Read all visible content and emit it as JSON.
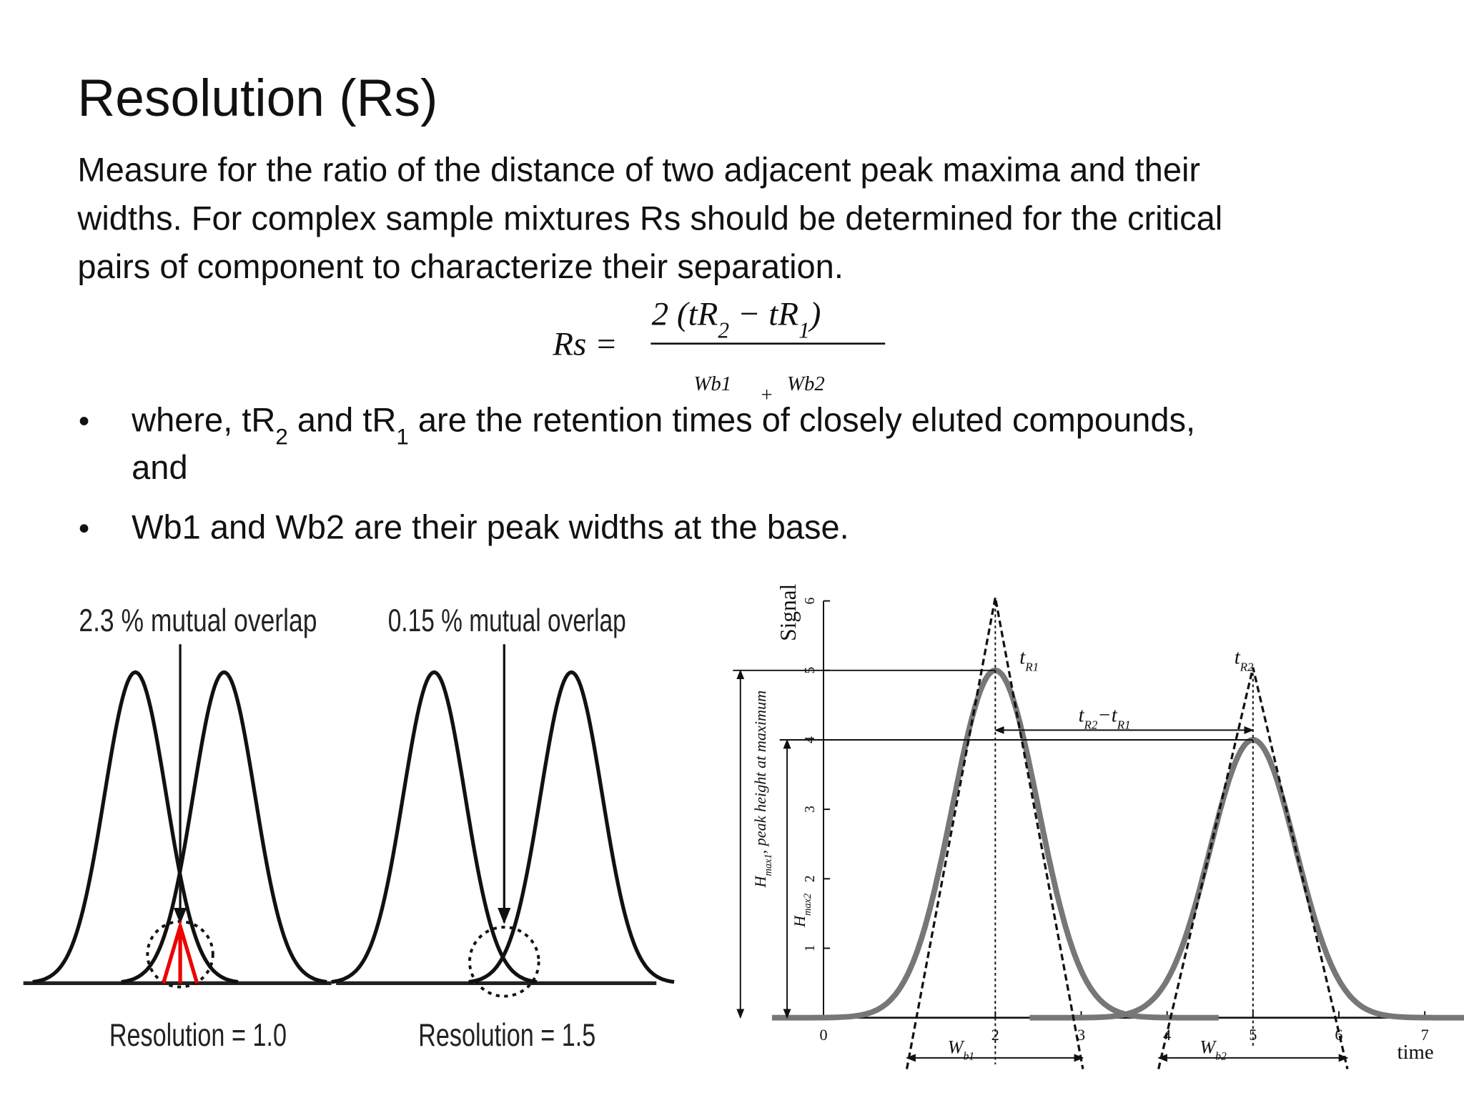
{
  "title": "Resolution (Rs)",
  "paragraph": [
    "Measure for the ratio of the distance of two adjacent peak maxima and their",
    "widths. For complex sample mixtures Rs should be determined for the critical",
    "pairs of component to characterize their separation."
  ],
  "formula": {
    "lhs": "Rs =",
    "numerator": [
      "2 (tR",
      "2",
      " − tR",
      "1",
      ")"
    ],
    "denominator": [
      "Wb1",
      "+",
      "Wb2"
    ]
  },
  "bullets": [
    {
      "parts": [
        "where, tR",
        "2",
        " and tR",
        "1",
        " are the retention times of closely eluted compounds,"
      ],
      "continuation": "and"
    },
    {
      "parts": [
        "Wb1 and Wb2 are their peak widths at the base."
      ]
    }
  ],
  "figure_left": {
    "panels": [
      {
        "caption_top": "2.3 % mutual overlap",
        "caption_bottom": "Resolution = 1.0"
      },
      {
        "caption_top": "0.15 % mutual overlap",
        "caption_bottom": "Resolution = 1.5"
      }
    ]
  },
  "figure_right": {
    "y_label": "Signal",
    "y_ticks": [
      1,
      2,
      3,
      4,
      5,
      6
    ],
    "x_ticks": [
      0,
      2,
      3,
      4,
      5,
      6,
      7
    ],
    "x_label": "time",
    "h_max1": [
      "H",
      "max1",
      ", peak height at maximum"
    ],
    "h_max2": [
      "H",
      "max2"
    ],
    "t_r1": [
      "t",
      "R1"
    ],
    "t_r2": [
      "t",
      "R2"
    ],
    "difference": [
      "t",
      "R2",
      "−t",
      "R1"
    ],
    "w_b1": [
      "W",
      "b1"
    ],
    "w_b2": [
      "W",
      "b2"
    ]
  }
}
